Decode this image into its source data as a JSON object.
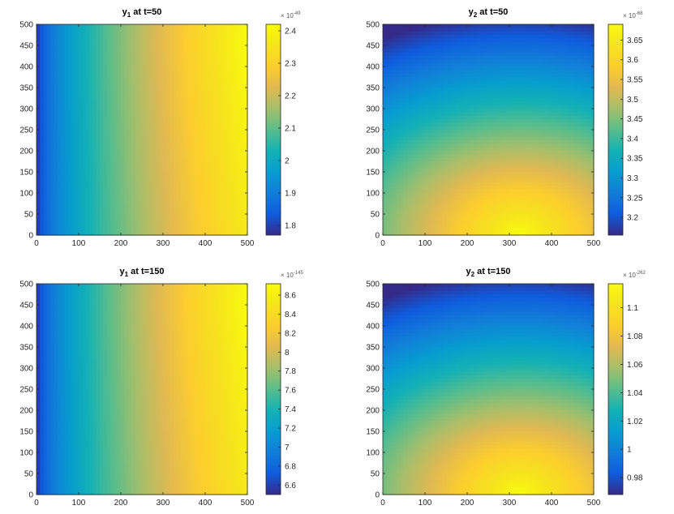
{
  "chart_data": [
    {
      "type": "heatmap",
      "title": {
        "var": "y",
        "sub": "1",
        "rest": " at t=50"
      },
      "xticks": [
        "0",
        "100",
        "200",
        "300",
        "400",
        "500"
      ],
      "yticks": [
        "0",
        "50",
        "100",
        "150",
        "200",
        "250",
        "300",
        "350",
        "400",
        "450",
        "500"
      ],
      "xlim": [
        0,
        500
      ],
      "ylim": [
        0,
        500
      ],
      "colorbar": {
        "multiplier": {
          "base": "× 10",
          "exp": "-49"
        },
        "ticks": [
          "1.8",
          "1.9",
          "2",
          "2.1",
          "2.2",
          "2.3",
          "2.4"
        ],
        "tick_values": [
          1.8,
          1.9,
          2.0,
          2.1,
          2.2,
          2.3,
          2.4
        ],
        "clim": [
          1.77,
          2.42
        ]
      },
      "pattern": "horizontal-gradient",
      "colormap": "parula"
    },
    {
      "type": "heatmap",
      "title": {
        "var": "y",
        "sub": "2",
        "rest": " at t=50"
      },
      "xticks": [
        "0",
        "100",
        "200",
        "300",
        "400",
        "500"
      ],
      "yticks": [
        "0",
        "50",
        "100",
        "150",
        "200",
        "250",
        "300",
        "350",
        "400",
        "450",
        "500"
      ],
      "xlim": [
        0,
        500
      ],
      "ylim": [
        0,
        500
      ],
      "colorbar": {
        "multiplier": {
          "base": "× 10",
          "exp": "-68"
        },
        "ticks": [
          "3.2",
          "3.25",
          "3.3",
          "3.35",
          "3.4",
          "3.45",
          "3.5",
          "3.55",
          "3.6",
          "3.65"
        ],
        "tick_values": [
          3.2,
          3.25,
          3.3,
          3.35,
          3.4,
          3.45,
          3.5,
          3.55,
          3.6,
          3.65
        ],
        "clim": [
          3.155,
          3.69
        ]
      },
      "pattern": "corner-gradient",
      "colormap": "parula"
    },
    {
      "type": "heatmap",
      "title": {
        "var": "y",
        "sub": "1",
        "rest": " at t=150"
      },
      "xticks": [
        "0",
        "100",
        "200",
        "300",
        "400",
        "500"
      ],
      "yticks": [
        "0",
        "50",
        "100",
        "150",
        "200",
        "250",
        "300",
        "350",
        "400",
        "450",
        "500"
      ],
      "xlim": [
        0,
        500
      ],
      "ylim": [
        0,
        500
      ],
      "colorbar": {
        "multiplier": {
          "base": "× 10",
          "exp": "-145"
        },
        "ticks": [
          "6.6",
          "6.8",
          "7",
          "7.2",
          "7.4",
          "7.6",
          "7.8",
          "8",
          "8.2",
          "8.4",
          "8.6"
        ],
        "tick_values": [
          6.6,
          6.8,
          7.0,
          7.2,
          7.4,
          7.6,
          7.8,
          8.0,
          8.2,
          8.4,
          8.6
        ],
        "clim": [
          6.5,
          8.72
        ]
      },
      "pattern": "horizontal-gradient",
      "colormap": "parula"
    },
    {
      "type": "heatmap",
      "title": {
        "var": "y",
        "sub": "2",
        "rest": " at t=150"
      },
      "xticks": [
        "0",
        "100",
        "200",
        "300",
        "400",
        "500"
      ],
      "yticks": [
        "0",
        "50",
        "100",
        "150",
        "200",
        "250",
        "300",
        "350",
        "400",
        "450",
        "500"
      ],
      "xlim": [
        0,
        500
      ],
      "ylim": [
        0,
        500
      ],
      "colorbar": {
        "multiplier": {
          "base": "× 10",
          "exp": "-262"
        },
        "ticks": [
          "0.98",
          "1",
          "1.02",
          "1.04",
          "1.06",
          "1.08",
          "1.1"
        ],
        "tick_values": [
          0.98,
          1.0,
          1.02,
          1.04,
          1.06,
          1.08,
          1.1
        ],
        "clim": [
          0.968,
          1.117
        ]
      },
      "pattern": "corner-gradient",
      "colormap": "parula"
    }
  ]
}
